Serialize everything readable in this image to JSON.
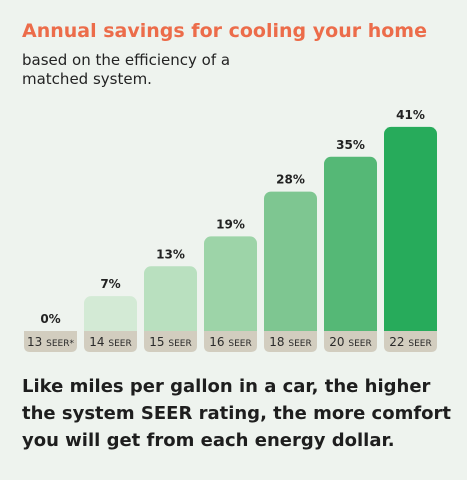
{
  "header": {
    "title": "Annual savings for cooling your home",
    "subtitle": "based on the efficiency of a matched system."
  },
  "chart_data": {
    "type": "bar",
    "categories": [
      "13 SEER*",
      "14 SEER",
      "15 SEER",
      "16 SEER",
      "18 SEER",
      "20 SEER",
      "22 SEER"
    ],
    "category_numbers": [
      "13",
      "14",
      "15",
      "16",
      "18",
      "20",
      "22"
    ],
    "category_units": [
      "SEER*",
      "SEER",
      "SEER",
      "SEER",
      "SEER",
      "SEER",
      "SEER"
    ],
    "values": [
      0,
      7,
      13,
      19,
      28,
      35,
      41
    ],
    "value_labels": [
      "0%",
      "7%",
      "13%",
      "19%",
      "28%",
      "35%",
      "41%"
    ],
    "bar_colors": [
      "#e9efe8",
      "#d3ead5",
      "#b9e0bf",
      "#9dd4a8",
      "#7ec691",
      "#55b876",
      "#27ab5b"
    ],
    "label_band_color": "#d2cdbf",
    "ylim": [
      0,
      45
    ],
    "title": "Annual savings for cooling your home",
    "xlabel": "",
    "ylabel": ""
  },
  "footer": {
    "text": "Like miles per gallon in a car, the higher the system SEER rating, the more comfort you will get from each energy dollar."
  }
}
